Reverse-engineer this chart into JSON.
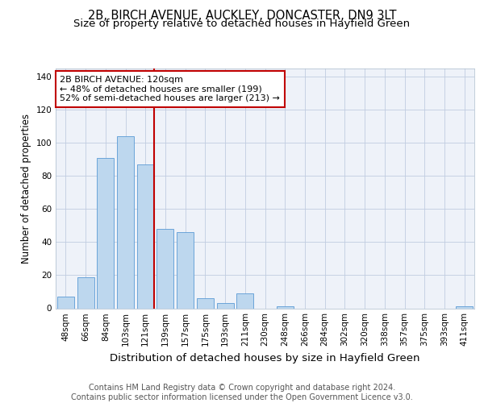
{
  "title": "2B, BIRCH AVENUE, AUCKLEY, DONCASTER, DN9 3LT",
  "subtitle": "Size of property relative to detached houses in Hayfield Green",
  "xlabel": "Distribution of detached houses by size in Hayfield Green",
  "ylabel": "Number of detached properties",
  "categories": [
    "48sqm",
    "66sqm",
    "84sqm",
    "103sqm",
    "121sqm",
    "139sqm",
    "157sqm",
    "175sqm",
    "193sqm",
    "211sqm",
    "230sqm",
    "248sqm",
    "266sqm",
    "284sqm",
    "302sqm",
    "320sqm",
    "338sqm",
    "357sqm",
    "375sqm",
    "393sqm",
    "411sqm"
  ],
  "values": [
    7,
    19,
    91,
    104,
    87,
    48,
    46,
    6,
    3,
    9,
    0,
    1,
    0,
    0,
    0,
    0,
    0,
    0,
    0,
    0,
    1
  ],
  "bar_color": "#bdd7ee",
  "bar_edge_color": "#5b9bd5",
  "vline_x_index": 4,
  "vline_color": "#c00000",
  "annotation_line1": "2B BIRCH AVENUE: 120sqm",
  "annotation_line2": "← 48% of detached houses are smaller (199)",
  "annotation_line3": "52% of semi-detached houses are larger (213) →",
  "annotation_box_color": "#ffffff",
  "annotation_box_edge": "#c00000",
  "ylim": [
    0,
    145
  ],
  "yticks": [
    0,
    20,
    40,
    60,
    80,
    100,
    120,
    140
  ],
  "background_color": "#eef2f9",
  "footer_line1": "Contains HM Land Registry data © Crown copyright and database right 2024.",
  "footer_line2": "Contains public sector information licensed under the Open Government Licence v3.0.",
  "title_fontsize": 10.5,
  "subtitle_fontsize": 9.5,
  "xlabel_fontsize": 9.5,
  "ylabel_fontsize": 8.5,
  "tick_fontsize": 7.5,
  "annotation_fontsize": 8.0,
  "footer_fontsize": 7.0
}
